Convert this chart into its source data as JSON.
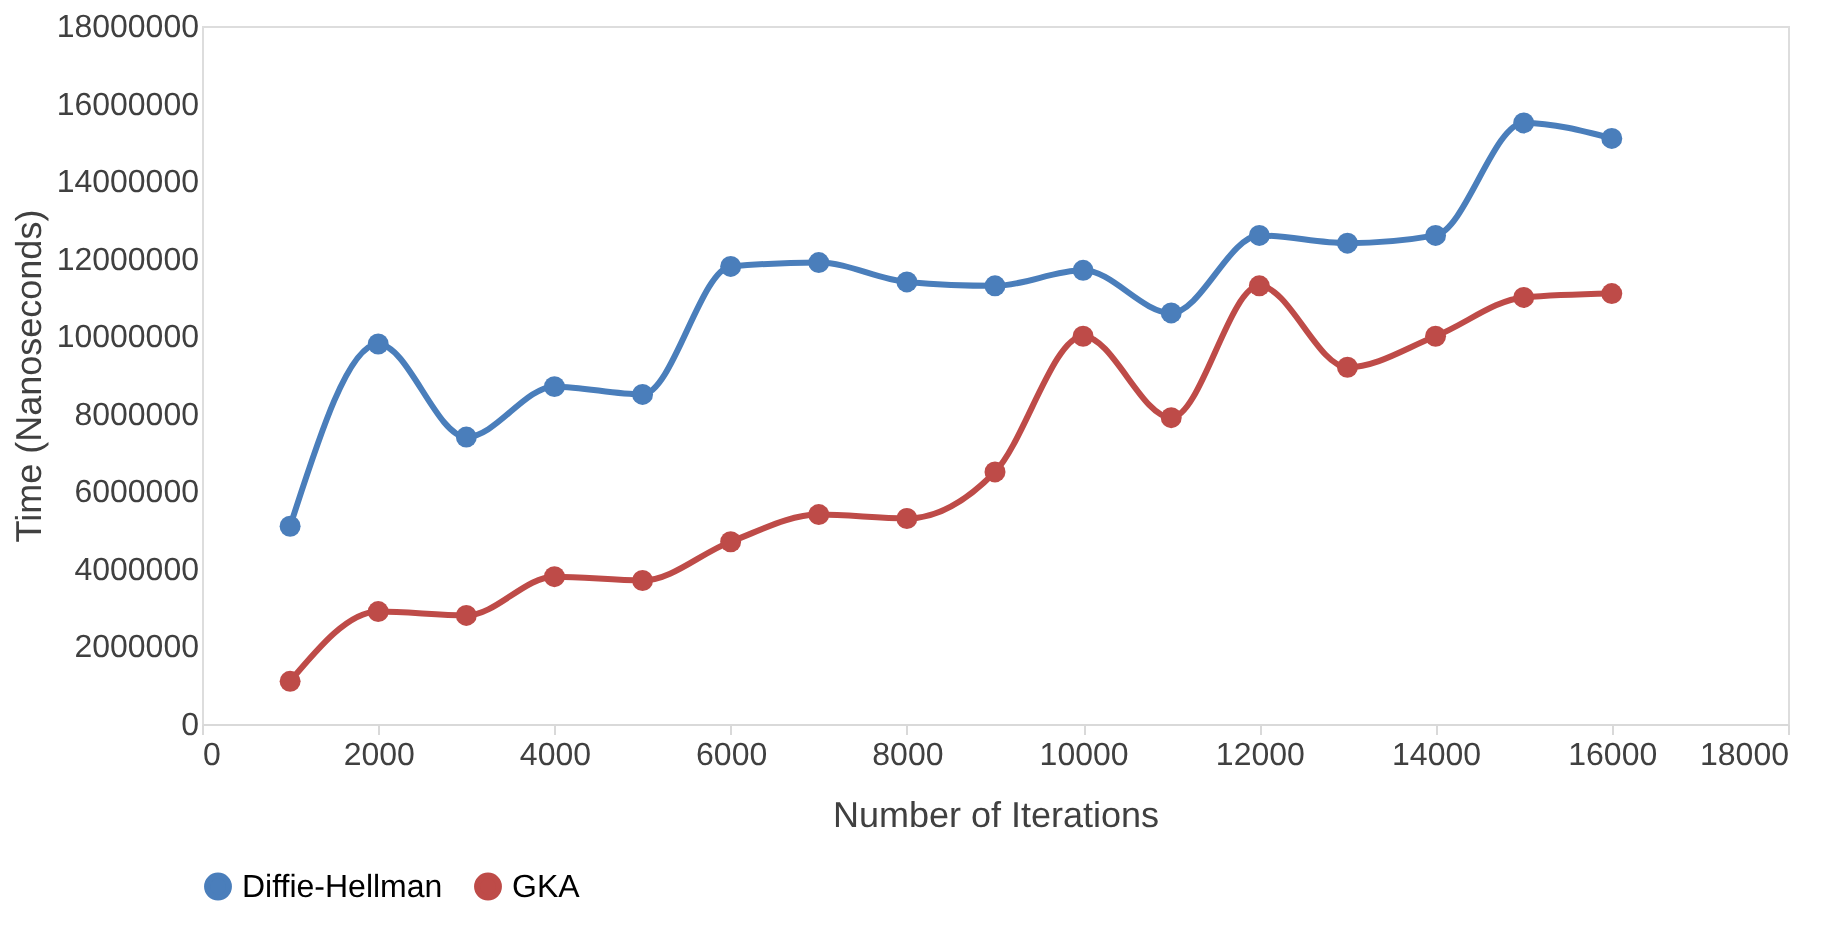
{
  "chart_data": {
    "type": "line",
    "xlabel": "Number of Iterations",
    "ylabel": "Time (Nanoseconds)",
    "x": [
      1000,
      2000,
      3000,
      4000,
      5000,
      6000,
      7000,
      8000,
      9000,
      10000,
      11000,
      12000,
      13000,
      14000,
      15000,
      16000
    ],
    "series": [
      {
        "name": "Diffie-Hellman",
        "color": "#4a7ebb",
        "values": [
          5100000,
          9800000,
          7400000,
          8700000,
          8500000,
          11800000,
          11900000,
          11400000,
          11300000,
          11700000,
          10600000,
          12600000,
          12400000,
          12600000,
          15500000,
          15100000
        ]
      },
      {
        "name": "GKA",
        "color": "#be4b48",
        "values": [
          1100000,
          2900000,
          2800000,
          3800000,
          3700000,
          4700000,
          5400000,
          5300000,
          6500000,
          10000000,
          7900000,
          11300000,
          9200000,
          10000000,
          11000000,
          11100000
        ]
      }
    ],
    "xlim": [
      0,
      18000
    ],
    "xticks": [
      0,
      2000,
      4000,
      6000,
      8000,
      10000,
      12000,
      14000,
      16000,
      18000
    ],
    "ylim": [
      0,
      18000000
    ],
    "yticks": [
      0,
      2000000,
      4000000,
      6000000,
      8000000,
      10000000,
      12000000,
      14000000,
      16000000,
      18000000
    ],
    "grid": false,
    "legend": "bottom",
    "marker": "circle",
    "line_style": "solid"
  }
}
